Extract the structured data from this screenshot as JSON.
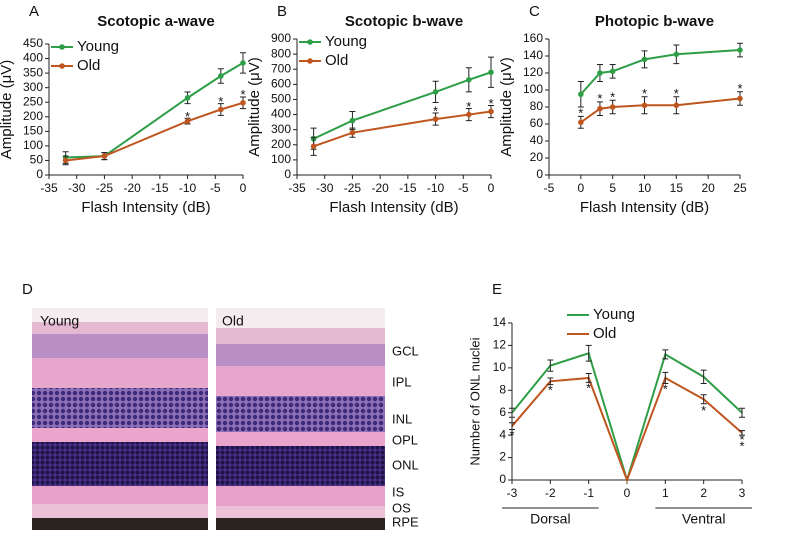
{
  "chart_data": [
    {
      "type": "line",
      "panel": "A",
      "title": "Scotopic a-wave",
      "xlabel": "Flash Intensity (dB)",
      "ylabel": "Amplitude (μV)",
      "x": [
        -32,
        -25,
        -10,
        -4,
        0
      ],
      "xlim": [
        -35,
        0
      ],
      "xticks": [
        -35,
        -30,
        -25,
        -20,
        -15,
        -10,
        -5,
        0
      ],
      "ylim": [
        0,
        450
      ],
      "yticks": [
        0,
        50,
        100,
        150,
        200,
        250,
        300,
        350,
        400,
        450
      ],
      "legend": "upper left",
      "series": [
        {
          "name": "Young",
          "color": "#2e9e47",
          "values": [
            60,
            65,
            265,
            340,
            385
          ],
          "errors": [
            20,
            12,
            20,
            25,
            35
          ]
        },
        {
          "name": "Old",
          "color": "#c0561f",
          "values": [
            50,
            65,
            185,
            225,
            248
          ],
          "errors": [
            15,
            12,
            10,
            20,
            20
          ]
        }
      ],
      "annotations": [
        {
          "text": "*",
          "x": -10,
          "y": 205
        },
        {
          "text": "*",
          "x": -4,
          "y": 255
        },
        {
          "text": "*",
          "x": 0,
          "y": 280
        }
      ]
    },
    {
      "type": "line",
      "panel": "B",
      "title": "Scotopic b-wave",
      "xlabel": "Flash Intensity (dB)",
      "ylabel": "Amplitude (μV)",
      "x": [
        -32,
        -25,
        -10,
        -4,
        0
      ],
      "xlim": [
        -35,
        0
      ],
      "xticks": [
        -35,
        -30,
        -25,
        -20,
        -15,
        -10,
        -5,
        0
      ],
      "ylim": [
        0,
        900
      ],
      "yticks": [
        0,
        100,
        200,
        300,
        400,
        500,
        600,
        700,
        800,
        900
      ],
      "legend": "upper left",
      "series": [
        {
          "name": "Young",
          "color": "#2e9e47",
          "values": [
            240,
            360,
            550,
            630,
            680
          ],
          "errors": [
            70,
            60,
            70,
            80,
            100
          ]
        },
        {
          "name": "Old",
          "color": "#c0561f",
          "values": [
            190,
            280,
            370,
            400,
            420
          ],
          "errors": [
            60,
            30,
            40,
            40,
            40
          ]
        }
      ],
      "annotations": [
        {
          "text": "*",
          "x": -10,
          "y": 430
        },
        {
          "text": "*",
          "x": -4,
          "y": 460
        },
        {
          "text": "*",
          "x": 0,
          "y": 480
        }
      ]
    },
    {
      "type": "line",
      "panel": "C",
      "title": "Photopic b-wave",
      "xlabel": "Flash Intensity (dB)",
      "ylabel": "Amplitude (μV)",
      "x": [
        0,
        3,
        5,
        10,
        15,
        25
      ],
      "xlim": [
        -5,
        25
      ],
      "xticks": [
        -5,
        0,
        5,
        10,
        15,
        20,
        25
      ],
      "ylim": [
        0,
        160
      ],
      "yticks": [
        0,
        20,
        40,
        60,
        80,
        100,
        120,
        140,
        160
      ],
      "series": [
        {
          "name": "Young",
          "color": "#2e9e47",
          "values": [
            95,
            120,
            122,
            136,
            142,
            147
          ],
          "errors": [
            15,
            10,
            8,
            10,
            11,
            8
          ]
        },
        {
          "name": "Old",
          "color": "#c0561f",
          "values": [
            62,
            78,
            80,
            82,
            82,
            90
          ],
          "errors": [
            7,
            8,
            8,
            10,
            10,
            8
          ]
        }
      ],
      "annotations": [
        {
          "text": "*",
          "x": 0,
          "y": 74
        },
        {
          "text": "*",
          "x": 3,
          "y": 91
        },
        {
          "text": "*",
          "x": 5,
          "y": 93
        },
        {
          "text": "*",
          "x": 10,
          "y": 97
        },
        {
          "text": "*",
          "x": 15,
          "y": 97
        },
        {
          "text": "*",
          "x": 25,
          "y": 103
        }
      ]
    },
    {
      "type": "line",
      "panel": "E",
      "ylabel": "Number of ONL nuclei",
      "x": [
        -3,
        -2,
        -1,
        0,
        1,
        2,
        3
      ],
      "xlim": [
        -3,
        3
      ],
      "xticks": [
        -3,
        -2,
        -1,
        0,
        1,
        2,
        3
      ],
      "ylim": [
        0,
        14
      ],
      "yticks": [
        0,
        2,
        4,
        6,
        8,
        10,
        12,
        14
      ],
      "legend": "upper center",
      "series": [
        {
          "name": "Young",
          "color": "#2e9e47",
          "values": [
            6,
            10.2,
            11.3,
            0,
            11.2,
            9.2,
            6
          ],
          "errors": [
            0.4,
            0.5,
            0.7,
            0,
            0.4,
            0.6,
            0.4
          ]
        },
        {
          "name": "Old",
          "color": "#c0561f",
          "values": [
            4.8,
            8.8,
            9.1,
            0,
            9.1,
            7.2,
            4.2
          ],
          "errors": [
            0.3,
            0.3,
            0.4,
            0,
            0.5,
            0.4,
            0.2
          ]
        }
      ],
      "annotations": [
        {
          "text": "*",
          "x": -3,
          "y": 4.1
        },
        {
          "text": "*",
          "x": -2,
          "y": 8.1
        },
        {
          "text": "*",
          "x": -1,
          "y": 8.3
        },
        {
          "text": "*",
          "x": 1,
          "y": 8.2
        },
        {
          "text": "*",
          "x": 2,
          "y": 6.3
        },
        {
          "text": "*",
          "x": 3,
          "y": 3.7
        },
        {
          "text": "*",
          "x": 3,
          "y": 3.1
        }
      ],
      "groups": [
        {
          "label": "Dorsal",
          "range": [
            -3,
            -1
          ]
        },
        {
          "label": "Ventral",
          "range": [
            1,
            3
          ]
        }
      ]
    }
  ],
  "histology": {
    "panel": "D",
    "left_label": "Young",
    "right_label": "Old",
    "layers": [
      "GCL",
      "IPL",
      "INL",
      "OPL",
      "ONL",
      "IS",
      "OS",
      "RPE"
    ]
  }
}
